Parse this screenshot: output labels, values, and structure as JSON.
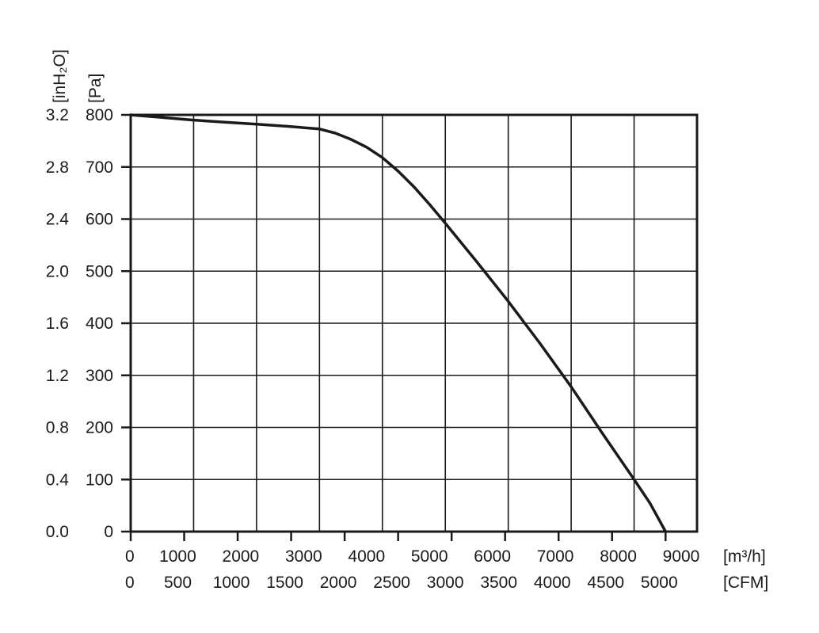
{
  "chart_data": {
    "type": "line",
    "x_unit_primary": "[m³/h]",
    "x_unit_secondary": "[CFM]",
    "y_unit_primary": "[Pa]",
    "y_unit_secondary": "[inH₂O]",
    "xlim": [
      0,
      9000
    ],
    "ylim": [
      0,
      800
    ],
    "grid": true,
    "x_ticks_primary": [
      {
        "value": 0,
        "label": "0"
      },
      {
        "value": 1000,
        "label": "1000"
      },
      {
        "value": 2000,
        "label": "2000"
      },
      {
        "value": 3000,
        "label": "3000"
      },
      {
        "value": 4000,
        "label": "4000"
      },
      {
        "value": 5000,
        "label": "5000"
      },
      {
        "value": 6000,
        "label": "6000"
      },
      {
        "value": 7000,
        "label": "7000"
      },
      {
        "value": 8000,
        "label": "8000"
      },
      {
        "value": 9000,
        "label": "9000"
      }
    ],
    "x_ticks_secondary": [
      {
        "value": 0,
        "label": "0"
      },
      {
        "value": 500,
        "label": "500"
      },
      {
        "value": 1000,
        "label": "1000"
      },
      {
        "value": 1500,
        "label": "1500"
      },
      {
        "value": 2000,
        "label": "2000"
      },
      {
        "value": 2500,
        "label": "2500"
      },
      {
        "value": 3000,
        "label": "3000"
      },
      {
        "value": 3500,
        "label": "3500"
      },
      {
        "value": 4000,
        "label": "4000"
      },
      {
        "value": 4500,
        "label": "4500"
      },
      {
        "value": 5000,
        "label": "5000"
      }
    ],
    "y_ticks_primary": [
      {
        "value": 0,
        "label": "0"
      },
      {
        "value": 100,
        "label": "100"
      },
      {
        "value": 200,
        "label": "200"
      },
      {
        "value": 300,
        "label": "300"
      },
      {
        "value": 400,
        "label": "400"
      },
      {
        "value": 500,
        "label": "500"
      },
      {
        "value": 600,
        "label": "600"
      },
      {
        "value": 700,
        "label": "700"
      },
      {
        "value": 800,
        "label": "800"
      }
    ],
    "y_ticks_secondary": [
      {
        "value": 0,
        "label": "0.0"
      },
      {
        "value": 100,
        "label": "0.4"
      },
      {
        "value": 200,
        "label": "0.8"
      },
      {
        "value": 300,
        "label": "1.2"
      },
      {
        "value": 400,
        "label": "1.6"
      },
      {
        "value": 500,
        "label": "2.0"
      },
      {
        "value": 600,
        "label": "2.4"
      },
      {
        "value": 700,
        "label": "2.8"
      },
      {
        "value": 800,
        "label": "3.2"
      }
    ],
    "series": [
      {
        "points": [
          [
            0,
            800
          ],
          [
            500,
            795
          ],
          [
            1000,
            790
          ],
          [
            1500,
            786
          ],
          [
            2000,
            782
          ],
          [
            2500,
            778
          ],
          [
            3000,
            773
          ],
          [
            3250,
            765
          ],
          [
            3500,
            753
          ],
          [
            3750,
            738
          ],
          [
            4000,
            718
          ],
          [
            4250,
            692
          ],
          [
            4500,
            662
          ],
          [
            4750,
            628
          ],
          [
            5000,
            592
          ],
          [
            5500,
            518
          ],
          [
            6000,
            442
          ],
          [
            6500,
            362
          ],
          [
            7000,
            278
          ],
          [
            7500,
            188
          ],
          [
            8000,
            100
          ],
          [
            8250,
            55
          ],
          [
            8500,
            0
          ]
        ]
      }
    ]
  }
}
